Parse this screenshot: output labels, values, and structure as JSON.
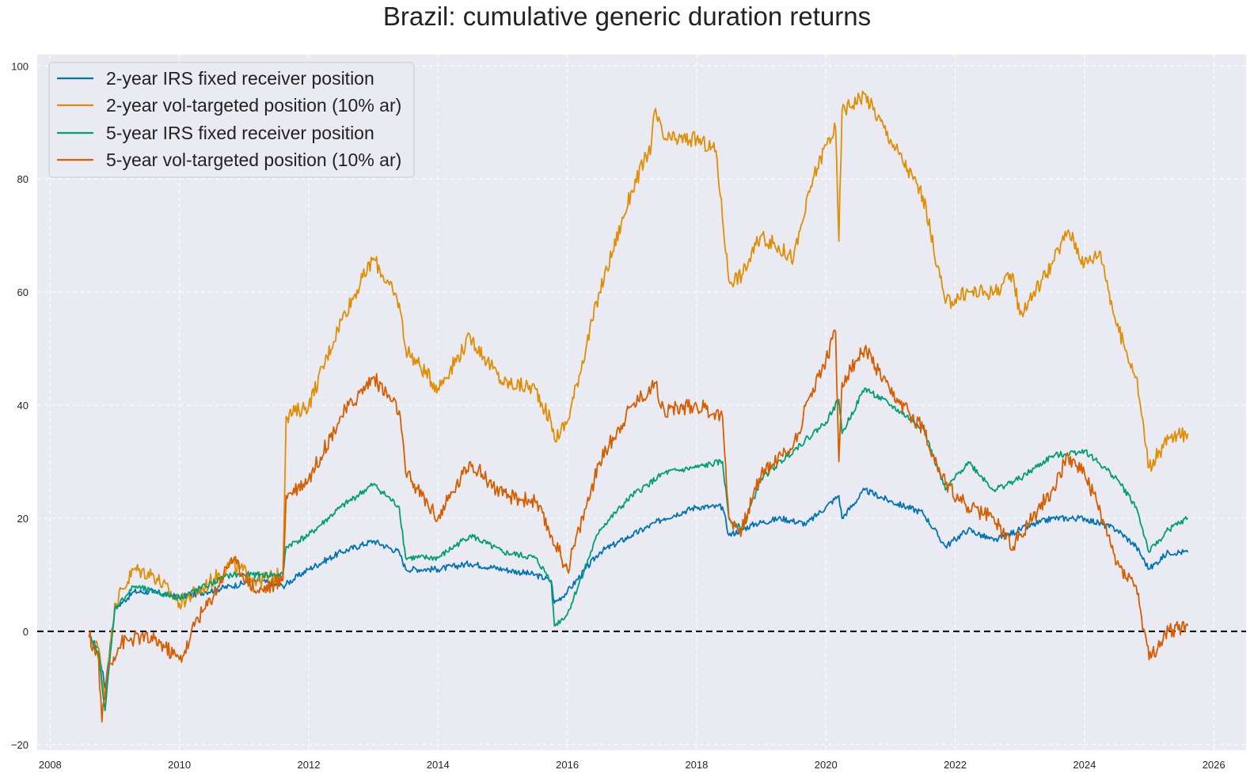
{
  "chart_data": {
    "type": "line",
    "title": "Brazil: cumulative generic duration returns",
    "xlabel": "",
    "ylabel": "",
    "xlim": [
      2007.8,
      2026.5
    ],
    "ylim": [
      -21,
      102
    ],
    "x_ticks": [
      2008,
      2010,
      2012,
      2014,
      2016,
      2018,
      2020,
      2022,
      2024,
      2026
    ],
    "x_tick_labels": [
      "2008",
      "2010",
      "2012",
      "2014",
      "2016",
      "2018",
      "2020",
      "2022",
      "2024",
      "2026"
    ],
    "y_ticks": [
      -20,
      0,
      20,
      40,
      60,
      80,
      100
    ],
    "y_tick_labels": [
      "−20",
      "0",
      "20",
      "40",
      "60",
      "80",
      "100"
    ],
    "grid": true,
    "legend_position": "top-left",
    "reference_line": {
      "y": 0,
      "style": "dashed",
      "color": "#000000"
    },
    "series": [
      {
        "name": "2-year IRS fixed receiver position",
        "color": "#0173b2",
        "x": [
          2008.6,
          2008.75,
          2008.85,
          2009.0,
          2009.3,
          2009.6,
          2010.0,
          2010.4,
          2010.8,
          2011.2,
          2011.6,
          2012.0,
          2012.5,
          2013.0,
          2013.4,
          2013.5,
          2014.0,
          2014.5,
          2015.0,
          2015.5,
          2015.75,
          2015.8,
          2016.0,
          2016.5,
          2017.0,
          2017.5,
          2018.0,
          2018.4,
          2018.5,
          2018.9,
          2019.3,
          2019.7,
          2020.0,
          2020.2,
          2020.25,
          2020.6,
          2021.0,
          2021.5,
          2021.85,
          2022.2,
          2022.6,
          2023.0,
          2023.5,
          2024.0,
          2024.5,
          2024.8,
          2025.0,
          2025.3,
          2025.6
        ],
        "values": [
          -1,
          -3,
          -10,
          4,
          7,
          7,
          6,
          7,
          8,
          9,
          8,
          11,
          14,
          16,
          14,
          11,
          11,
          12,
          11,
          10,
          9,
          5,
          7,
          14,
          17,
          20,
          22,
          22,
          17,
          19,
          20,
          19,
          22,
          24,
          20,
          25,
          23,
          21,
          15,
          18,
          16,
          18,
          20,
          20,
          18,
          15,
          11,
          14,
          14
        ]
      },
      {
        "name": "2-year vol-targeted position (10% ar)",
        "color": "#de8f05",
        "x": [
          2008.6,
          2008.75,
          2008.85,
          2009.0,
          2009.3,
          2009.6,
          2010.0,
          2010.4,
          2010.8,
          2011.2,
          2011.6,
          2011.65,
          2012.0,
          2012.5,
          2013.0,
          2013.4,
          2013.5,
          2014.0,
          2014.5,
          2015.0,
          2015.5,
          2015.75,
          2015.8,
          2016.0,
          2016.5,
          2017.0,
          2017.3,
          2017.35,
          2017.5,
          2018.0,
          2018.3,
          2018.5,
          2018.7,
          2019.0,
          2019.5,
          2019.8,
          2020.0,
          2020.15,
          2020.2,
          2020.25,
          2020.6,
          2021.0,
          2021.5,
          2021.85,
          2022.2,
          2022.6,
          2022.9,
          2023.0,
          2023.5,
          2023.75,
          2024.0,
          2024.25,
          2024.5,
          2024.8,
          2025.0,
          2025.3,
          2025.6
        ],
        "values": [
          -1,
          -3,
          -12,
          5,
          11,
          10,
          5,
          8,
          12,
          9,
          10,
          38,
          40,
          55,
          66,
          58,
          50,
          43,
          52,
          44,
          43,
          37,
          34,
          37,
          60,
          78,
          86,
          92,
          87,
          87,
          85,
          62,
          63,
          70,
          66,
          80,
          86,
          89,
          69,
          92,
          95,
          87,
          77,
          58,
          60,
          60,
          63,
          56,
          65,
          71,
          65,
          67,
          54,
          45,
          29,
          34,
          35
        ]
      },
      {
        "name": "5-year IRS fixed receiver position",
        "color": "#029e73",
        "x": [
          2008.6,
          2008.75,
          2008.85,
          2009.0,
          2009.3,
          2009.6,
          2010.0,
          2010.4,
          2010.8,
          2011.2,
          2011.6,
          2011.65,
          2012.0,
          2012.5,
          2013.0,
          2013.4,
          2013.5,
          2014.0,
          2014.5,
          2015.0,
          2015.5,
          2015.75,
          2015.8,
          2016.0,
          2016.5,
          2017.0,
          2017.5,
          2018.0,
          2018.4,
          2018.5,
          2018.7,
          2019.0,
          2019.5,
          2020.0,
          2020.2,
          2020.25,
          2020.6,
          2021.0,
          2021.5,
          2021.85,
          2022.2,
          2022.6,
          2023.0,
          2023.5,
          2024.0,
          2024.5,
          2024.8,
          2025.0,
          2025.3,
          2025.6
        ],
        "values": [
          -1,
          -4,
          -14,
          4,
          8,
          7,
          6,
          8,
          10,
          10,
          10,
          15,
          17,
          22,
          26,
          22,
          13,
          13,
          17,
          14,
          13,
          9,
          1,
          3,
          18,
          24,
          28,
          29,
          30,
          20,
          18,
          27,
          32,
          37,
          41,
          35,
          43,
          40,
          36,
          25,
          30,
          25,
          27,
          31,
          32,
          27,
          22,
          14,
          18,
          20
        ]
      },
      {
        "name": "5-year vol-targeted position (10% ar)",
        "color": "#d55e00",
        "x": [
          2008.6,
          2008.75,
          2008.8,
          2008.9,
          2009.1,
          2009.4,
          2009.7,
          2010.0,
          2010.15,
          2010.25,
          2010.4,
          2010.6,
          2010.8,
          2011.2,
          2011.6,
          2011.65,
          2012.0,
          2012.5,
          2013.0,
          2013.4,
          2013.5,
          2014.0,
          2014.5,
          2015.0,
          2015.5,
          2015.75,
          2016.0,
          2016.5,
          2017.0,
          2017.3,
          2017.35,
          2017.5,
          2018.0,
          2018.4,
          2018.5,
          2018.7,
          2019.0,
          2019.5,
          2019.8,
          2020.0,
          2020.15,
          2020.2,
          2020.25,
          2020.6,
          2021.0,
          2021.5,
          2021.85,
          2022.2,
          2022.6,
          2022.9,
          2023.0,
          2023.5,
          2023.75,
          2024.0,
          2024.25,
          2024.5,
          2024.8,
          2025.0,
          2025.3,
          2025.6
        ],
        "values": [
          -1,
          -5,
          -16,
          -6,
          -2,
          -1,
          -2,
          -5,
          -2,
          2,
          4,
          8,
          13,
          7,
          9,
          24,
          27,
          38,
          45,
          39,
          28,
          20,
          30,
          24,
          23,
          17,
          11,
          30,
          40,
          43,
          44,
          39,
          40,
          38,
          20,
          18,
          28,
          33,
          43,
          48,
          53,
          30,
          44,
          50,
          42,
          36,
          26,
          22,
          20,
          15,
          17,
          25,
          31,
          28,
          21,
          12,
          8,
          -5,
          0,
          1
        ]
      }
    ]
  }
}
